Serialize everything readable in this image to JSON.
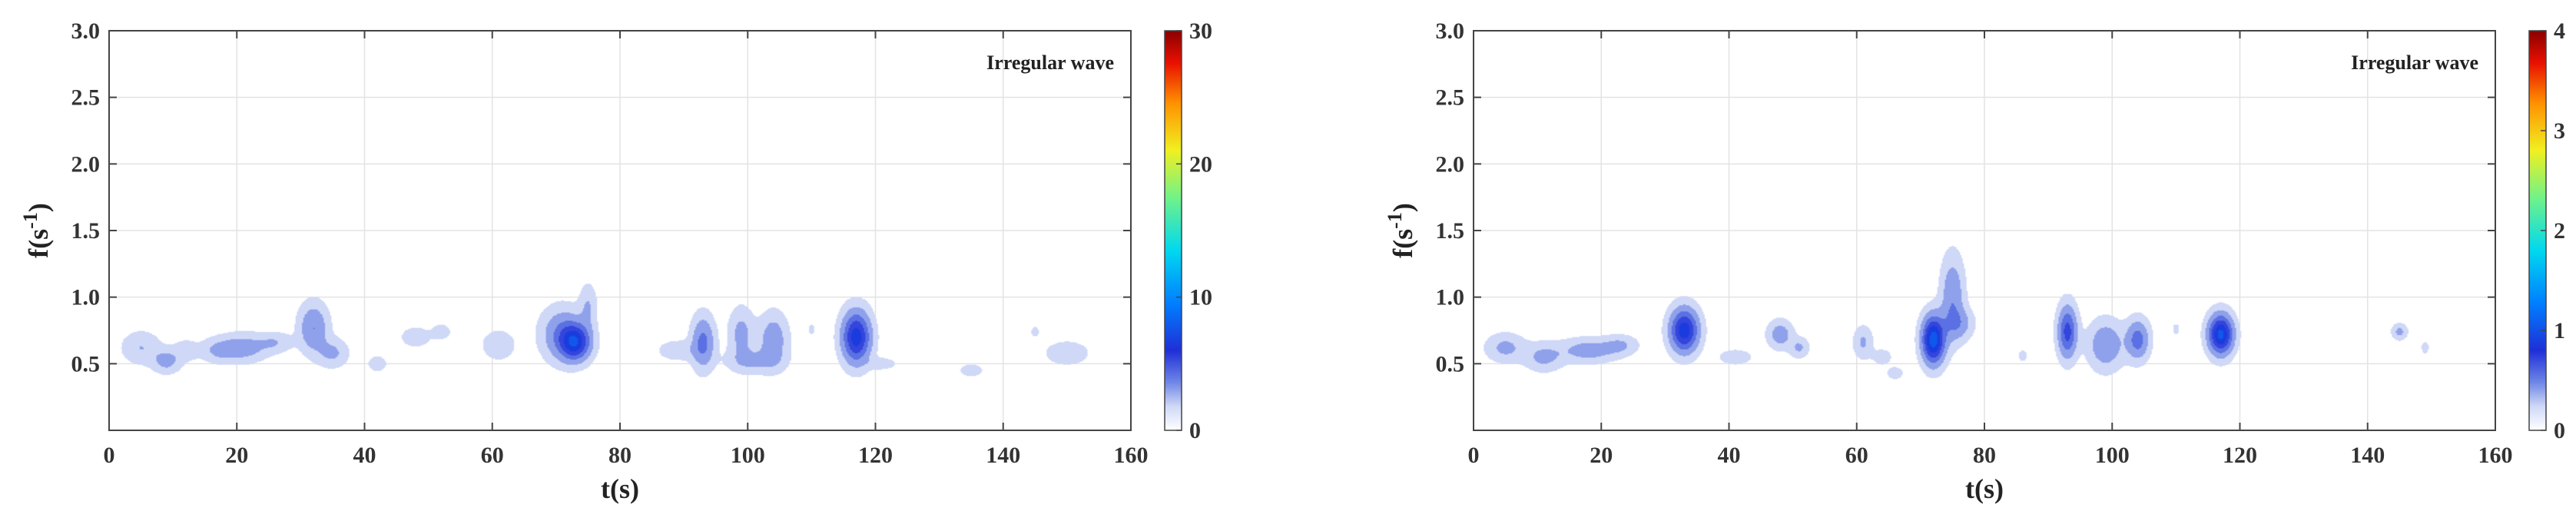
{
  "colormap": {
    "stops": [
      [
        0.0,
        "#ffffff"
      ],
      [
        0.06,
        "#cfd8f6"
      ],
      [
        0.12,
        "#6f86e6"
      ],
      [
        0.2,
        "#1f2fd8"
      ],
      [
        0.32,
        "#0080ff"
      ],
      [
        0.45,
        "#00d8ef"
      ],
      [
        0.58,
        "#6ff28a"
      ],
      [
        0.7,
        "#f0f020"
      ],
      [
        0.82,
        "#ff9000"
      ],
      [
        0.92,
        "#e81000"
      ],
      [
        1.0,
        "#8a0000"
      ]
    ]
  },
  "chart_data": [
    {
      "type": "heatmap",
      "title": "",
      "annotation": "Irregular wave",
      "xlabel": "t(s)",
      "ylabel": "f(s",
      "ylabel_sup": "-1",
      "ylabel_close": ")",
      "xlim": [
        0,
        160
      ],
      "ylim": [
        0,
        3
      ],
      "xticks": [
        "0",
        "20",
        "40",
        "60",
        "80",
        "100",
        "120",
        "140",
        "160"
      ],
      "xtick_values": [
        0,
        20,
        40,
        60,
        80,
        100,
        120,
        140,
        160
      ],
      "yticks": [
        "0.5",
        "1.0",
        "1.5",
        "2.0",
        "2.5",
        "3.0"
      ],
      "ytick_values": [
        0.5,
        1.0,
        1.5,
        2.0,
        2.5,
        3.0
      ],
      "grid": true,
      "colorbar": {
        "min": 0,
        "max": 30,
        "ticks": [
          "0",
          "10",
          "20",
          "30"
        ],
        "tick_values": [
          0,
          10,
          20,
          30
        ]
      },
      "blobs": [
        {
          "t": 5,
          "f": 0.62,
          "st": 2.0,
          "sf": 0.08,
          "v": 1.2
        },
        {
          "t": 9,
          "f": 0.52,
          "st": 1.5,
          "sf": 0.06,
          "v": 1.6
        },
        {
          "t": 12,
          "f": 0.6,
          "st": 1.2,
          "sf": 0.05,
          "v": 1.0
        },
        {
          "t": 17,
          "f": 0.6,
          "st": 2.0,
          "sf": 0.06,
          "v": 1.2
        },
        {
          "t": 21,
          "f": 0.62,
          "st": 2.5,
          "sf": 0.07,
          "v": 1.8
        },
        {
          "t": 26,
          "f": 0.66,
          "st": 1.8,
          "sf": 0.05,
          "v": 1.1
        },
        {
          "t": 32,
          "f": 0.77,
          "st": 1.5,
          "sf": 0.12,
          "v": 2.4
        },
        {
          "t": 35,
          "f": 0.58,
          "st": 1.6,
          "sf": 0.07,
          "v": 1.4
        },
        {
          "t": 42,
          "f": 0.5,
          "st": 1.0,
          "sf": 0.04,
          "v": 0.9
        },
        {
          "t": 48,
          "f": 0.7,
          "st": 1.5,
          "sf": 0.05,
          "v": 1.0
        },
        {
          "t": 52,
          "f": 0.74,
          "st": 1.0,
          "sf": 0.04,
          "v": 0.9
        },
        {
          "t": 61,
          "f": 0.64,
          "st": 1.6,
          "sf": 0.07,
          "v": 1.2
        },
        {
          "t": 71,
          "f": 0.72,
          "st": 2.2,
          "sf": 0.13,
          "v": 2.4
        },
        {
          "t": 73,
          "f": 0.66,
          "st": 1.6,
          "sf": 0.09,
          "v": 5.0
        },
        {
          "t": 75,
          "f": 0.93,
          "st": 0.9,
          "sf": 0.11,
          "v": 1.2
        },
        {
          "t": 89,
          "f": 0.6,
          "st": 2.0,
          "sf": 0.05,
          "v": 1.0
        },
        {
          "t": 93,
          "f": 0.66,
          "st": 1.2,
          "sf": 0.13,
          "v": 2.8
        },
        {
          "t": 101,
          "f": 0.52,
          "st": 2.8,
          "sf": 0.06,
          "v": 1.3
        },
        {
          "t": 99,
          "f": 0.72,
          "st": 1.3,
          "sf": 0.13,
          "v": 1.6
        },
        {
          "t": 104,
          "f": 0.68,
          "st": 1.5,
          "sf": 0.13,
          "v": 2.0
        },
        {
          "t": 110,
          "f": 0.76,
          "st": 0.4,
          "sf": 0.03,
          "v": 0.7
        },
        {
          "t": 117,
          "f": 0.7,
          "st": 1.5,
          "sf": 0.13,
          "v": 5.5
        },
        {
          "t": 121,
          "f": 0.5,
          "st": 1.5,
          "sf": 0.03,
          "v": 0.9
        },
        {
          "t": 135,
          "f": 0.45,
          "st": 1.2,
          "sf": 0.03,
          "v": 1.0
        },
        {
          "t": 145,
          "f": 0.74,
          "st": 0.5,
          "sf": 0.03,
          "v": 0.7
        },
        {
          "t": 150,
          "f": 0.58,
          "st": 2.3,
          "sf": 0.06,
          "v": 1.0
        }
      ]
    },
    {
      "type": "heatmap",
      "title": "",
      "annotation": "Irregular wave",
      "xlabel": "t(s)",
      "ylabel": "f(s",
      "ylabel_sup": "-1",
      "ylabel_close": ")",
      "xlim": [
        0,
        160
      ],
      "ylim": [
        0,
        3
      ],
      "xticks": [
        "0",
        "20",
        "40",
        "60",
        "80",
        "100",
        "120",
        "140",
        "160"
      ],
      "xtick_values": [
        0,
        20,
        40,
        60,
        80,
        100,
        120,
        140,
        160
      ],
      "yticks": [
        "0.5",
        "1.0",
        "1.5",
        "2.0",
        "2.5",
        "3.0"
      ],
      "ytick_values": [
        0.5,
        1.0,
        1.5,
        2.0,
        2.5,
        3.0
      ],
      "grid": true,
      "colorbar": {
        "min": 0,
        "max": 4,
        "ticks": [
          "0",
          "1",
          "2",
          "3",
          "4"
        ],
        "tick_values": [
          0,
          1,
          2,
          3,
          4
        ]
      },
      "blobs": [
        {
          "t": 5,
          "f": 0.62,
          "st": 2.0,
          "sf": 0.07,
          "v": 0.2
        },
        {
          "t": 11,
          "f": 0.55,
          "st": 2.0,
          "sf": 0.07,
          "v": 0.2
        },
        {
          "t": 18,
          "f": 0.6,
          "st": 3.0,
          "sf": 0.06,
          "v": 0.24
        },
        {
          "t": 23,
          "f": 0.64,
          "st": 1.8,
          "sf": 0.05,
          "v": 0.16
        },
        {
          "t": 33,
          "f": 0.75,
          "st": 1.5,
          "sf": 0.11,
          "v": 0.75
        },
        {
          "t": 41,
          "f": 0.55,
          "st": 1.8,
          "sf": 0.04,
          "v": 0.12
        },
        {
          "t": 48,
          "f": 0.72,
          "st": 1.3,
          "sf": 0.07,
          "v": 0.25
        },
        {
          "t": 51,
          "f": 0.62,
          "st": 1.0,
          "sf": 0.05,
          "v": 0.18
        },
        {
          "t": 61,
          "f": 0.66,
          "st": 1.0,
          "sf": 0.08,
          "v": 0.18
        },
        {
          "t": 64,
          "f": 0.55,
          "st": 1.0,
          "sf": 0.04,
          "v": 0.12
        },
        {
          "t": 66,
          "f": 0.43,
          "st": 0.8,
          "sf": 0.03,
          "v": 0.14
        },
        {
          "t": 72,
          "f": 0.68,
          "st": 1.2,
          "sf": 0.12,
          "v": 0.9
        },
        {
          "t": 75,
          "f": 1.0,
          "st": 1.2,
          "sf": 0.2,
          "v": 0.3
        },
        {
          "t": 76,
          "f": 0.8,
          "st": 1.5,
          "sf": 0.08,
          "v": 0.22
        },
        {
          "t": 86,
          "f": 0.56,
          "st": 0.5,
          "sf": 0.03,
          "v": 0.11
        },
        {
          "t": 93,
          "f": 0.74,
          "st": 1.0,
          "sf": 0.13,
          "v": 0.55
        },
        {
          "t": 99,
          "f": 0.64,
          "st": 1.8,
          "sf": 0.12,
          "v": 0.3
        },
        {
          "t": 104,
          "f": 0.68,
          "st": 1.2,
          "sf": 0.1,
          "v": 0.4
        },
        {
          "t": 110,
          "f": 0.76,
          "st": 0.4,
          "sf": 0.03,
          "v": 0.1
        },
        {
          "t": 117,
          "f": 0.72,
          "st": 1.3,
          "sf": 0.1,
          "v": 0.85
        },
        {
          "t": 145,
          "f": 0.74,
          "st": 0.8,
          "sf": 0.04,
          "v": 0.2
        },
        {
          "t": 149,
          "f": 0.62,
          "st": 0.4,
          "sf": 0.03,
          "v": 0.12
        }
      ]
    }
  ]
}
